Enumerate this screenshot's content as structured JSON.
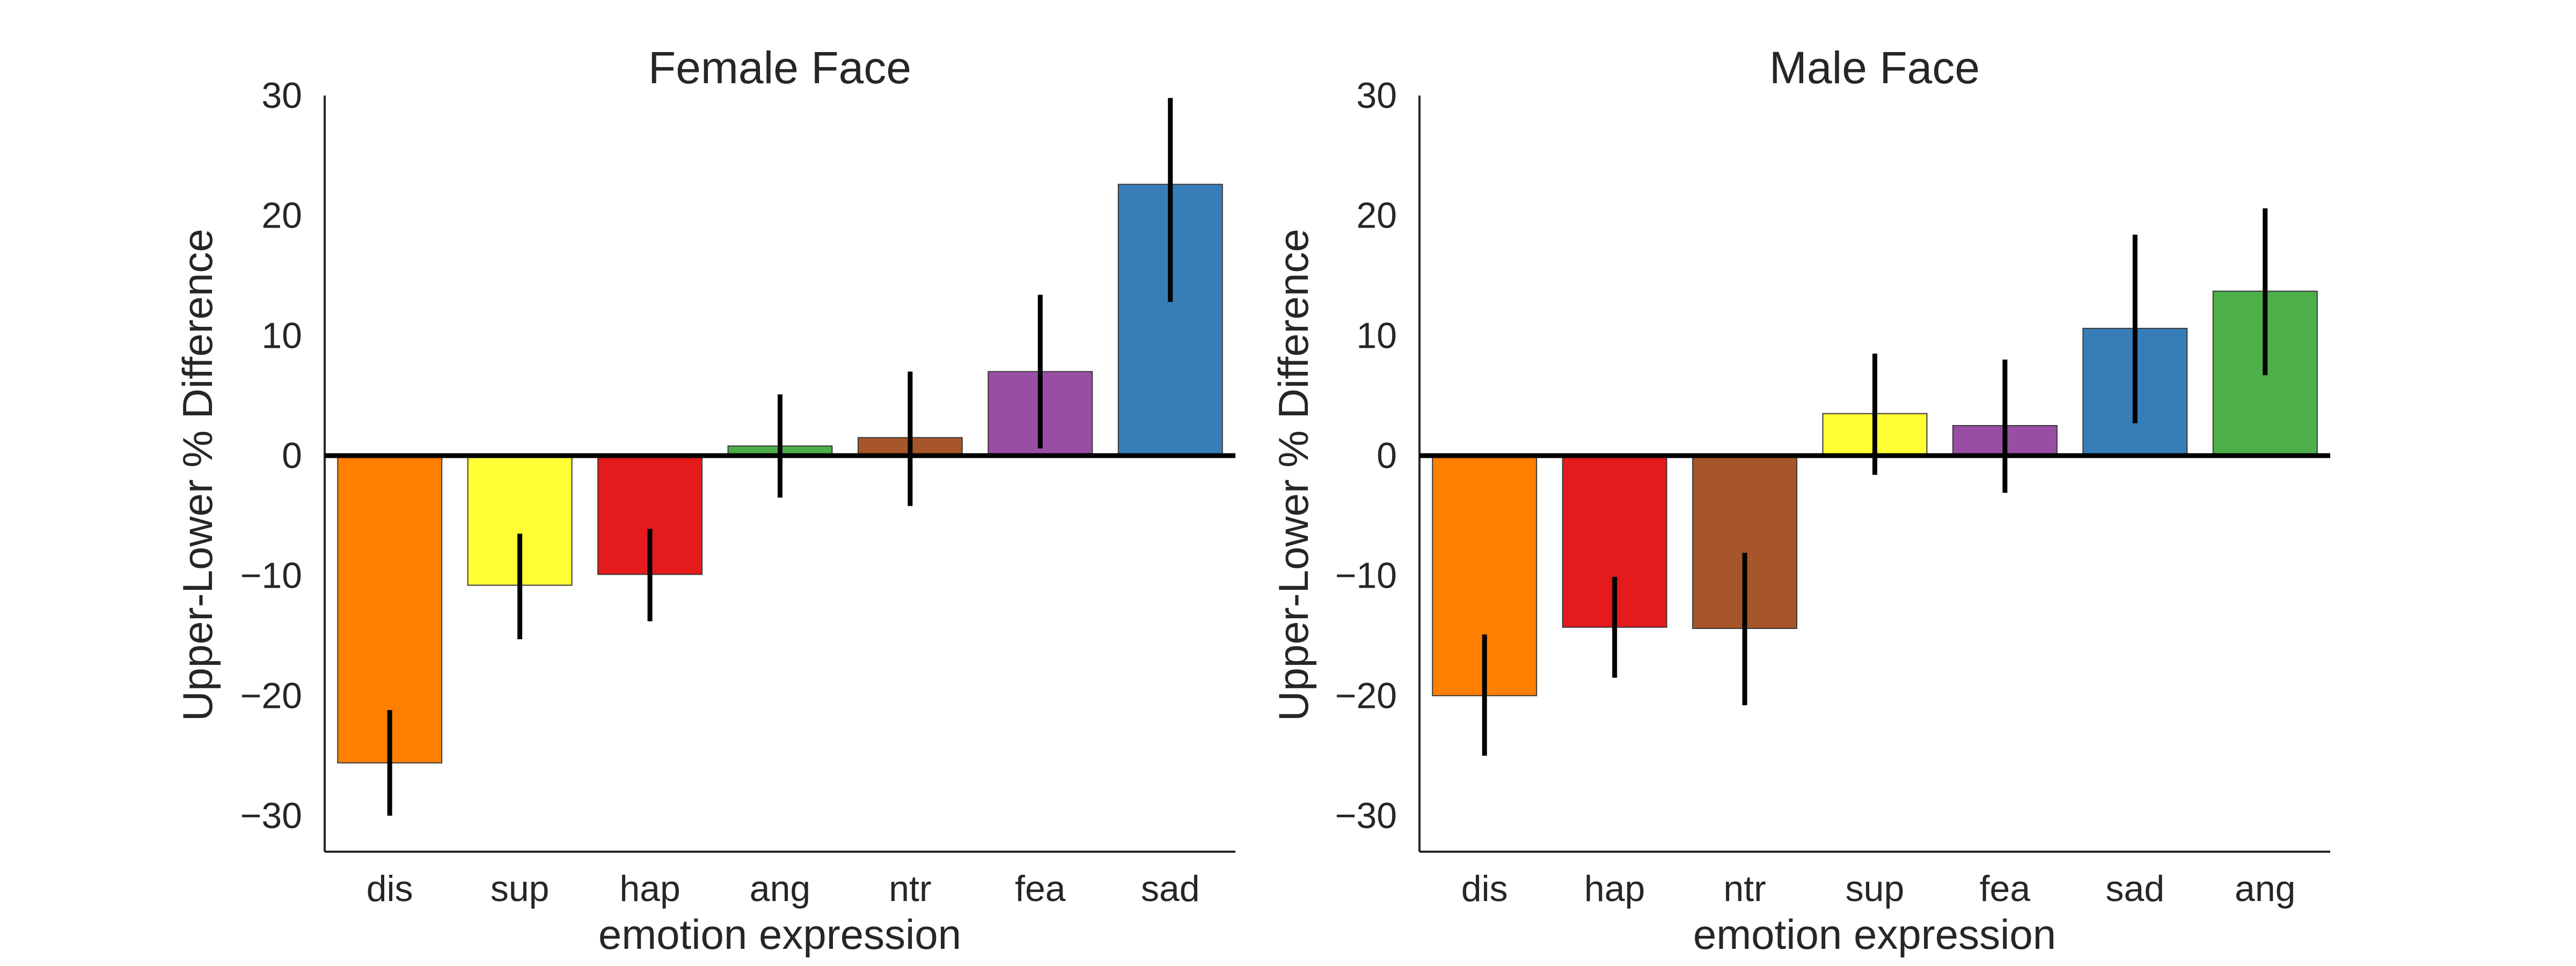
{
  "chart_data": [
    {
      "type": "bar",
      "title": "Female Face",
      "xlabel": "emotion expression",
      "ylabel": "Upper-Lower % Difference",
      "ylim": [
        -33,
        30
      ],
      "yticks": [
        30,
        20,
        10,
        0,
        -10,
        -20,
        -30
      ],
      "ytick_labels": [
        "30",
        "20",
        "10",
        "0",
        "−10",
        "−20",
        "−30"
      ],
      "categories": [
        "dis",
        "sup",
        "hap",
        "ang",
        "ntr",
        "fea",
        "sad"
      ],
      "values": [
        -25.6,
        -10.8,
        -9.9,
        0.8,
        1.5,
        7.0,
        22.6
      ],
      "error_low": [
        -30.0,
        -15.3,
        -13.8,
        -3.5,
        -4.2,
        0.6,
        12.8
      ],
      "error_high": [
        -21.2,
        -6.5,
        -6.1,
        5.1,
        7.0,
        13.4,
        29.8
      ],
      "colors": [
        "#ff7f00",
        "#ffff33",
        "#e41a1c",
        "#4daf4a",
        "#a65628",
        "#984ea3",
        "#377eb8"
      ],
      "grid": false
    },
    {
      "type": "bar",
      "title": "Male Face",
      "xlabel": "emotion expression",
      "ylabel": "Upper-Lower % Difference",
      "ylim": [
        -33,
        30
      ],
      "yticks": [
        30,
        20,
        10,
        0,
        -10,
        -20,
        -30
      ],
      "ytick_labels": [
        "30",
        "20",
        "10",
        "0",
        "−10",
        "−20",
        "−30"
      ],
      "categories": [
        "dis",
        "hap",
        "ntr",
        "sup",
        "fea",
        "sad",
        "ang"
      ],
      "values": [
        -20.0,
        -14.3,
        -14.4,
        3.5,
        2.5,
        10.6,
        13.7
      ],
      "error_low": [
        -25.0,
        -18.5,
        -20.8,
        -1.6,
        -3.1,
        2.7,
        6.7
      ],
      "error_high": [
        -14.9,
        -10.1,
        -8.1,
        8.5,
        8.0,
        18.4,
        20.6
      ],
      "colors": [
        "#ff7f00",
        "#e41a1c",
        "#a65628",
        "#ffff33",
        "#984ea3",
        "#377eb8",
        "#4daf4a"
      ],
      "grid": false
    }
  ]
}
